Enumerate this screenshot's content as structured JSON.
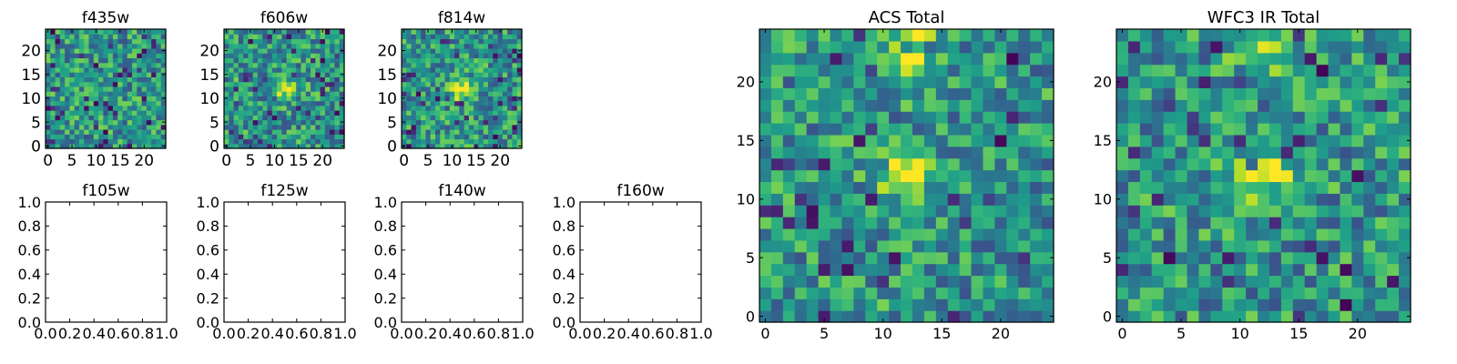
{
  "chart_data": [
    {
      "type": "heatmap",
      "title": "f435w",
      "x_ticks": [
        "0",
        "5",
        "10",
        "15",
        "20"
      ],
      "y_ticks": [
        "0",
        "5",
        "10",
        "15",
        "20"
      ],
      "xlim": [
        -0.5,
        24.5
      ],
      "ylim": [
        -0.5,
        24.5
      ],
      "grid": false,
      "colormap": "viridis",
      "seed": 11,
      "hotspots": []
    },
    {
      "type": "heatmap",
      "title": "f606w",
      "x_ticks": [
        "0",
        "5",
        "10",
        "15",
        "20"
      ],
      "y_ticks": [
        "0",
        "5",
        "10",
        "15",
        "20"
      ],
      "xlim": [
        -0.5,
        24.5
      ],
      "ylim": [
        -0.5,
        24.5
      ],
      "grid": false,
      "colormap": "viridis",
      "seed": 23,
      "hotspots": [
        [
          12,
          12
        ]
      ]
    },
    {
      "type": "heatmap",
      "title": "f814w",
      "x_ticks": [
        "0",
        "5",
        "10",
        "15",
        "20"
      ],
      "y_ticks": [
        "0",
        "5",
        "10",
        "15",
        "20"
      ],
      "xlim": [
        -0.5,
        24.5
      ],
      "ylim": [
        -0.5,
        24.5
      ],
      "grid": false,
      "colormap": "viridis",
      "seed": 37,
      "hotspots": [
        [
          12,
          12
        ]
      ]
    },
    {
      "type": "heatmap",
      "title": "ACS Total",
      "x_ticks": [
        "0",
        "5",
        "10",
        "15",
        "20"
      ],
      "y_ticks": [
        "0",
        "5",
        "10",
        "15",
        "20"
      ],
      "xlim": [
        -0.5,
        24.5
      ],
      "ylim": [
        -0.5,
        24.5
      ],
      "grid": false,
      "colormap": "viridis",
      "seed": 53,
      "hotspots": [
        [
          12,
          12
        ],
        [
          12,
          23
        ]
      ]
    },
    {
      "type": "heatmap",
      "title": "WFC3 IR Total",
      "x_ticks": [
        "0",
        "5",
        "10",
        "15",
        "20"
      ],
      "y_ticks": [
        "0",
        "5",
        "10",
        "15",
        "20"
      ],
      "xlim": [
        -0.5,
        24.5
      ],
      "ylim": [
        -0.5,
        24.5
      ],
      "grid": false,
      "colormap": "viridis",
      "seed": 71,
      "hotspots": [
        [
          12,
          12
        ],
        [
          12,
          23
        ]
      ]
    },
    {
      "type": "empty",
      "title": "f105w",
      "x_ticks": [
        "0.0",
        "0.2",
        "0.4",
        "0.6",
        "0.8",
        "1.0"
      ],
      "y_ticks": [
        "0.0",
        "0.2",
        "0.4",
        "0.6",
        "0.8",
        "1.0"
      ],
      "xlim": [
        0,
        1
      ],
      "ylim": [
        0,
        1
      ]
    },
    {
      "type": "empty",
      "title": "f125w",
      "x_ticks": [
        "0.0",
        "0.2",
        "0.4",
        "0.6",
        "0.8",
        "1.0"
      ],
      "y_ticks": [
        "0.0",
        "0.2",
        "0.4",
        "0.6",
        "0.8",
        "1.0"
      ],
      "xlim": [
        0,
        1
      ],
      "ylim": [
        0,
        1
      ]
    },
    {
      "type": "empty",
      "title": "f140w",
      "x_ticks": [
        "0.0",
        "0.2",
        "0.4",
        "0.6",
        "0.8",
        "1.0"
      ],
      "y_ticks": [
        "0.0",
        "0.2",
        "0.4",
        "0.6",
        "0.8",
        "1.0"
      ],
      "xlim": [
        0,
        1
      ],
      "ylim": [
        0,
        1
      ]
    },
    {
      "type": "empty",
      "title": "f160w",
      "x_ticks": [
        "0.0",
        "0.2",
        "0.4",
        "0.6",
        "0.8",
        "1.0"
      ],
      "y_ticks": [
        "0.0",
        "0.2",
        "0.4",
        "0.6",
        "0.8",
        "1.0"
      ],
      "xlim": [
        0,
        1
      ],
      "ylim": [
        0,
        1
      ]
    }
  ]
}
